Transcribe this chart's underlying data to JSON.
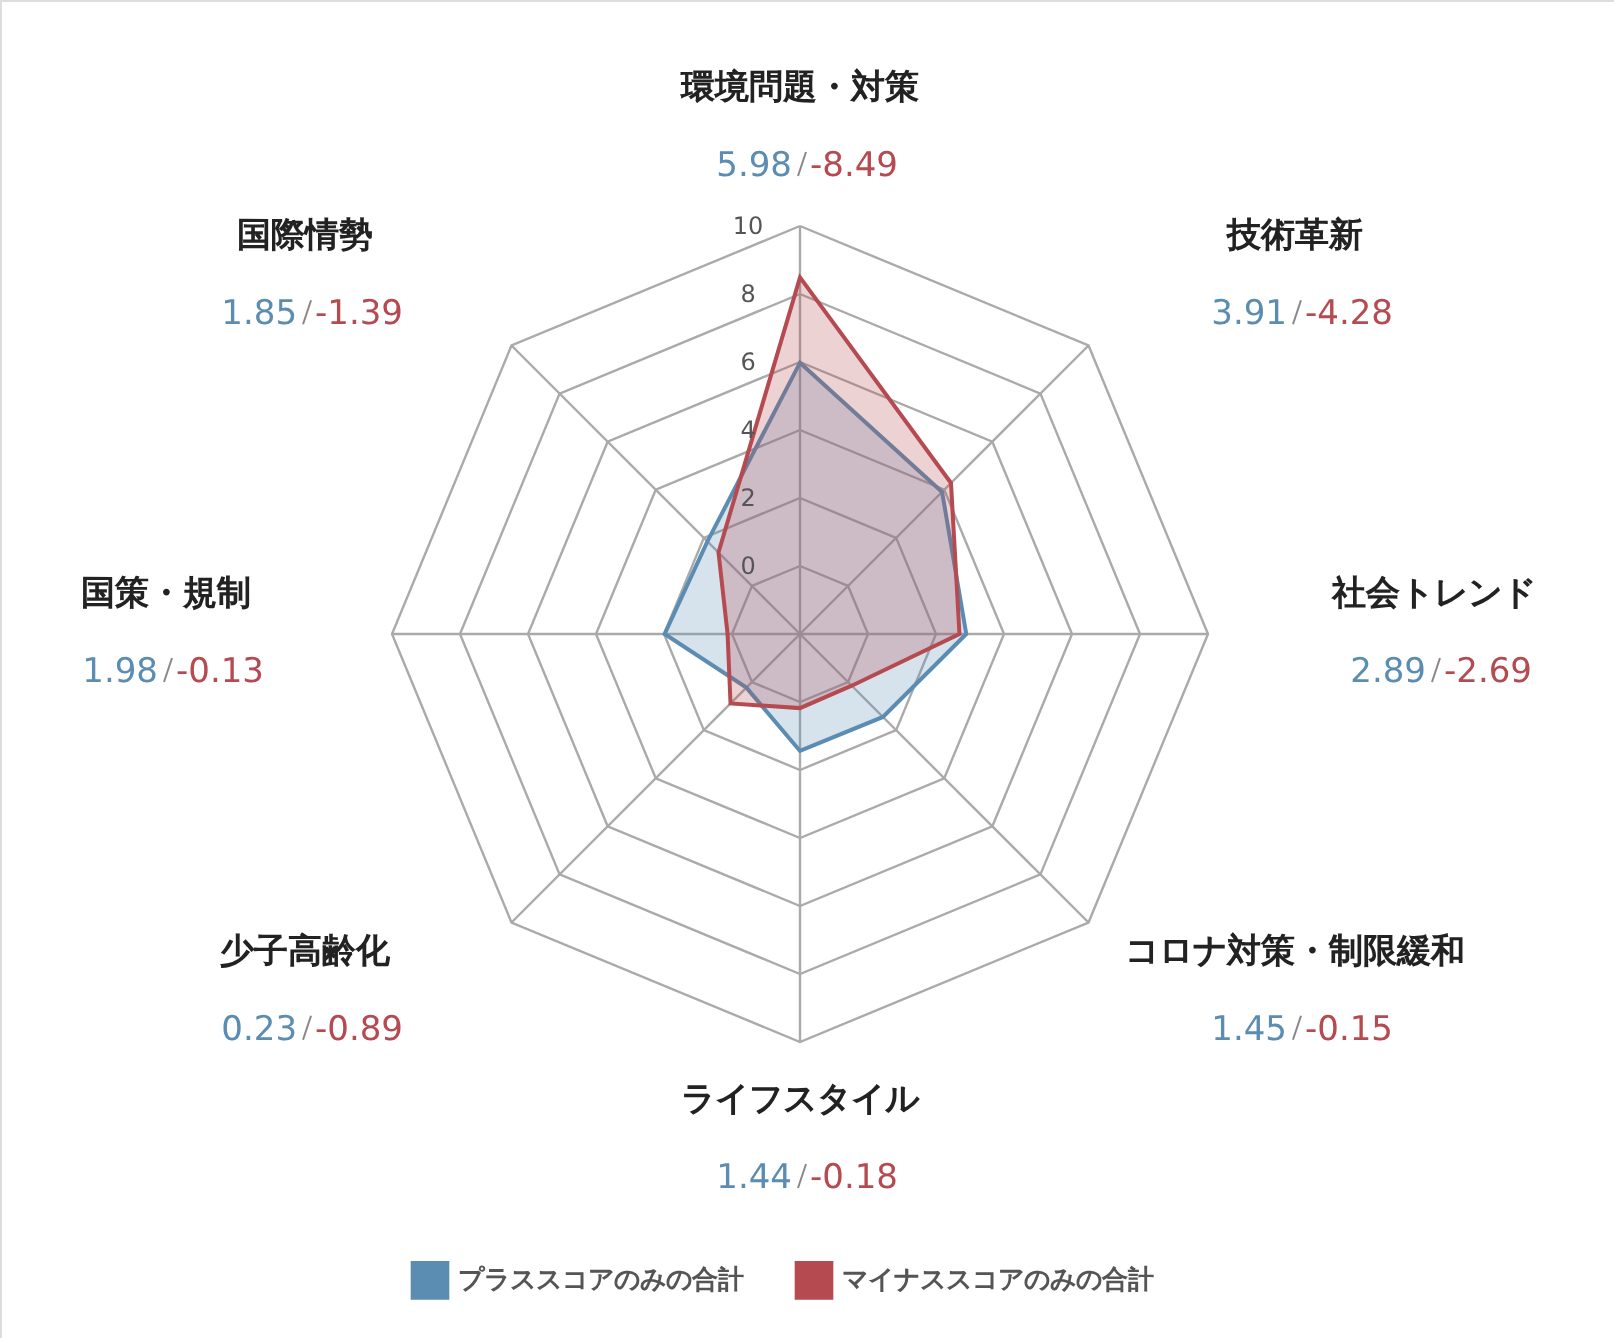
{
  "chart_data": {
    "type": "radar",
    "categories": [
      "環境問題・対策",
      "技術革新",
      "社会トレンド",
      "コロナ対策・制限緩和",
      "ライフスタイル",
      "少子高齢化",
      "国策・規制",
      "国際情勢"
    ],
    "ylim": [
      -2,
      10
    ],
    "yticks": [
      0,
      2,
      4,
      6,
      8,
      10
    ],
    "grid": true,
    "legend": "bottom",
    "marker": "none",
    "line_style": "solid",
    "series": [
      {
        "name": "プラススコアのみの合計",
        "color": "#5b8cb2",
        "values": [
          5.98,
          3.91,
          2.89,
          1.45,
          1.44,
          0.23,
          1.98,
          1.85
        ]
      },
      {
        "name": "マイナススコアのみの合計",
        "color": "#b54a50",
        "values": [
          8.49,
          4.28,
          2.69,
          0.15,
          0.18,
          0.89,
          0.13,
          1.39
        ]
      }
    ],
    "annotations": [
      "5.98",
      "-8.49",
      "3.91",
      "-4.28",
      "2.89",
      "-2.69",
      "1.45",
      "-0.15",
      "1.44",
      "-0.18",
      "0.23",
      "-0.89",
      "1.98",
      "-0.13",
      "1.85",
      "-1.39"
    ]
  }
}
